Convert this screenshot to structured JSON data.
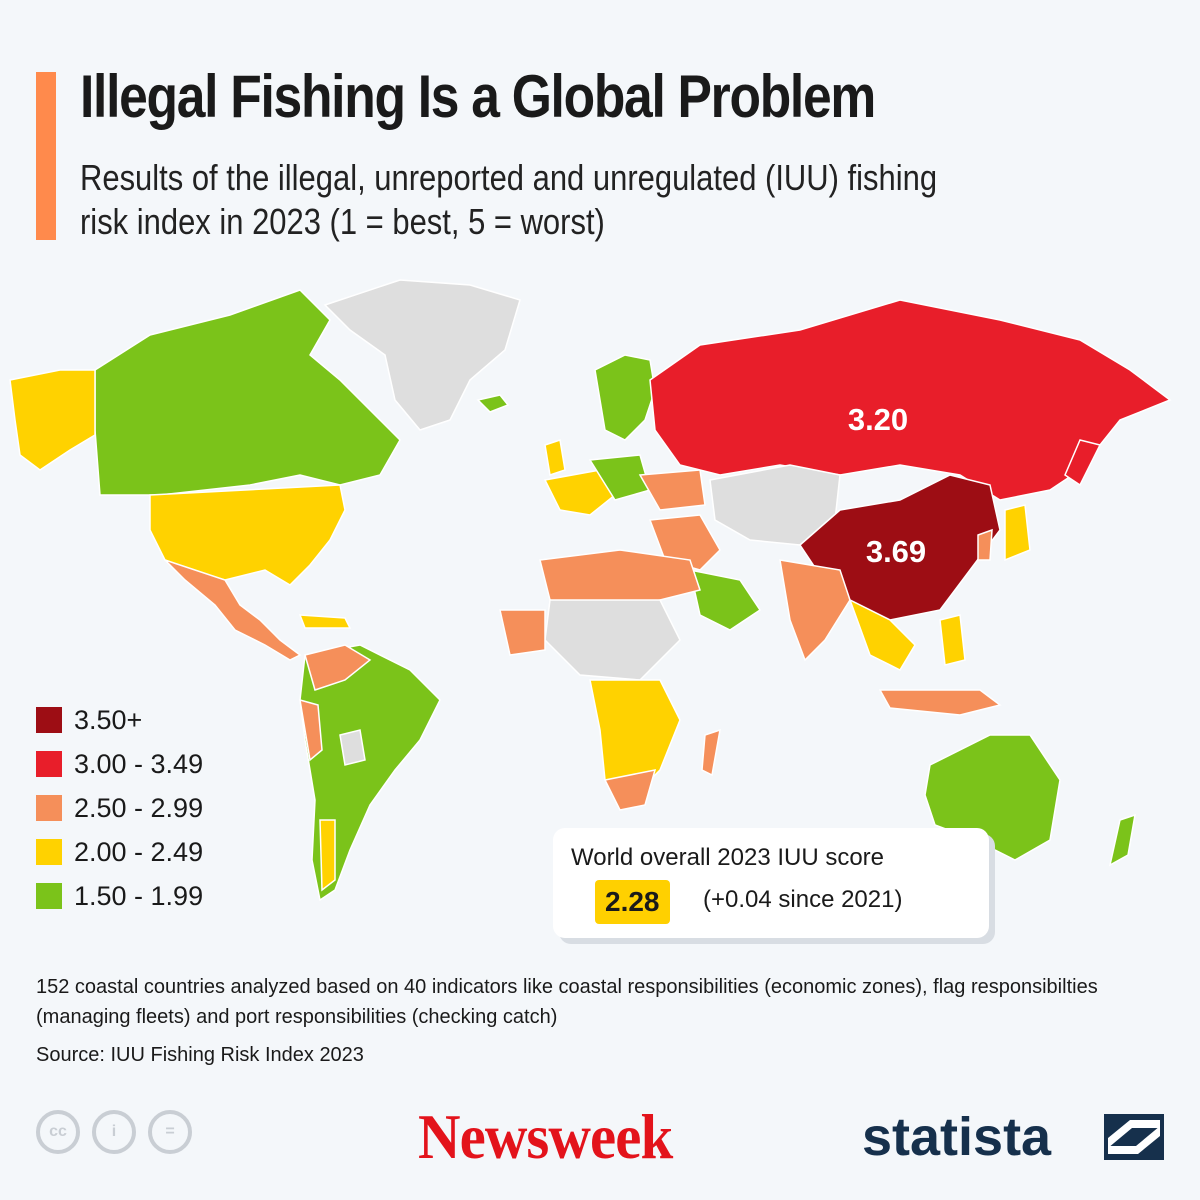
{
  "header": {
    "title": "Illegal Fishing Is a Global Problem",
    "subtitle": "Results of the illegal, unreported and unregulated (IUU) fishing risk index in 2023 (1 = best, 5 = worst)"
  },
  "map": {
    "labels": {
      "russia": "3.20",
      "china": "3.69"
    },
    "colors": {
      "no_data": "#dedede",
      "c150": "#7bc31a",
      "c200": "#ffd200",
      "c250": "#f58f5a",
      "c300": "#e81e2a",
      "c350": "#9d0d14"
    }
  },
  "legend": [
    {
      "label": "3.50+",
      "color": "#9d0d14"
    },
    {
      "label": "3.00 - 3.49",
      "color": "#e81e2a"
    },
    {
      "label": "2.50 - 2.99",
      "color": "#f58f5a"
    },
    {
      "label": "2.00 - 2.49",
      "color": "#ffd200"
    },
    {
      "label": "1.50 - 1.99",
      "color": "#7bc31a"
    }
  ],
  "score_box": {
    "title": "World overall 2023 IUU score",
    "value": "2.28",
    "change": "(+0.04 since 2021)"
  },
  "footer": {
    "note": "152 coastal countries analyzed based on 40 indicators like coastal responsibilities (economic zones), flag responsibilties (managing fleets) and port responsibilities (checking catch)",
    "source": "Source: IUU Fishing Risk Index 2023",
    "license_icons": [
      "cc",
      "i",
      "="
    ],
    "newsweek": "Newsweek",
    "statista": "statista"
  }
}
